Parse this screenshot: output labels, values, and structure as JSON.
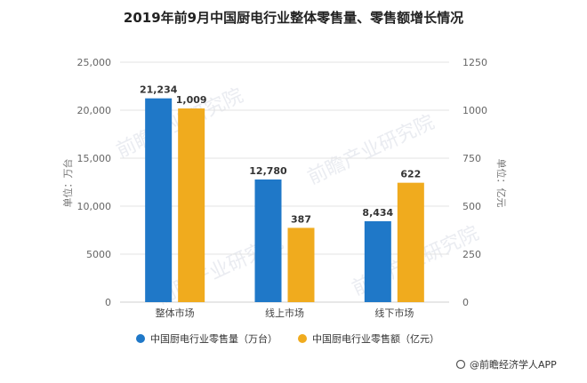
{
  "chart_data": {
    "type": "bar",
    "title": "2019年前9月中国厨电行业整体零售量、零售额增长情况",
    "categories": [
      "整体市场",
      "线上市场",
      "线下市场"
    ],
    "series": [
      {
        "name": "中国厨电行业零售量（万台）",
        "axis": "left",
        "color": "#1f78c8",
        "values": [
          21234,
          12780,
          8434
        ],
        "labels": [
          "21,234",
          "12,780",
          "8,434"
        ]
      },
      {
        "name": "中国厨电行业零售额（亿元）",
        "axis": "right",
        "color": "#f0ab1e",
        "values": [
          1009,
          387,
          622
        ],
        "labels": [
          "1,009",
          "387",
          "622"
        ]
      }
    ],
    "y_left": {
      "label": "单位：万台",
      "range": [
        0,
        25000
      ],
      "ticks": [
        0,
        5000,
        10000,
        15000,
        20000,
        25000
      ],
      "tick_labels": [
        "0",
        "5000",
        "10,000",
        "15,000",
        "20,000",
        "25,000"
      ]
    },
    "y_right": {
      "label": "单位：亿元",
      "range": [
        0,
        1250
      ],
      "ticks": [
        0,
        250,
        500,
        750,
        1000,
        1250
      ],
      "tick_labels": [
        "0",
        "250",
        "500",
        "750",
        "1000",
        "1250"
      ]
    },
    "grid": true,
    "legend": "bottom"
  },
  "source": "@前瞻经济学人APP",
  "watermark": "前瞻产业研究院"
}
